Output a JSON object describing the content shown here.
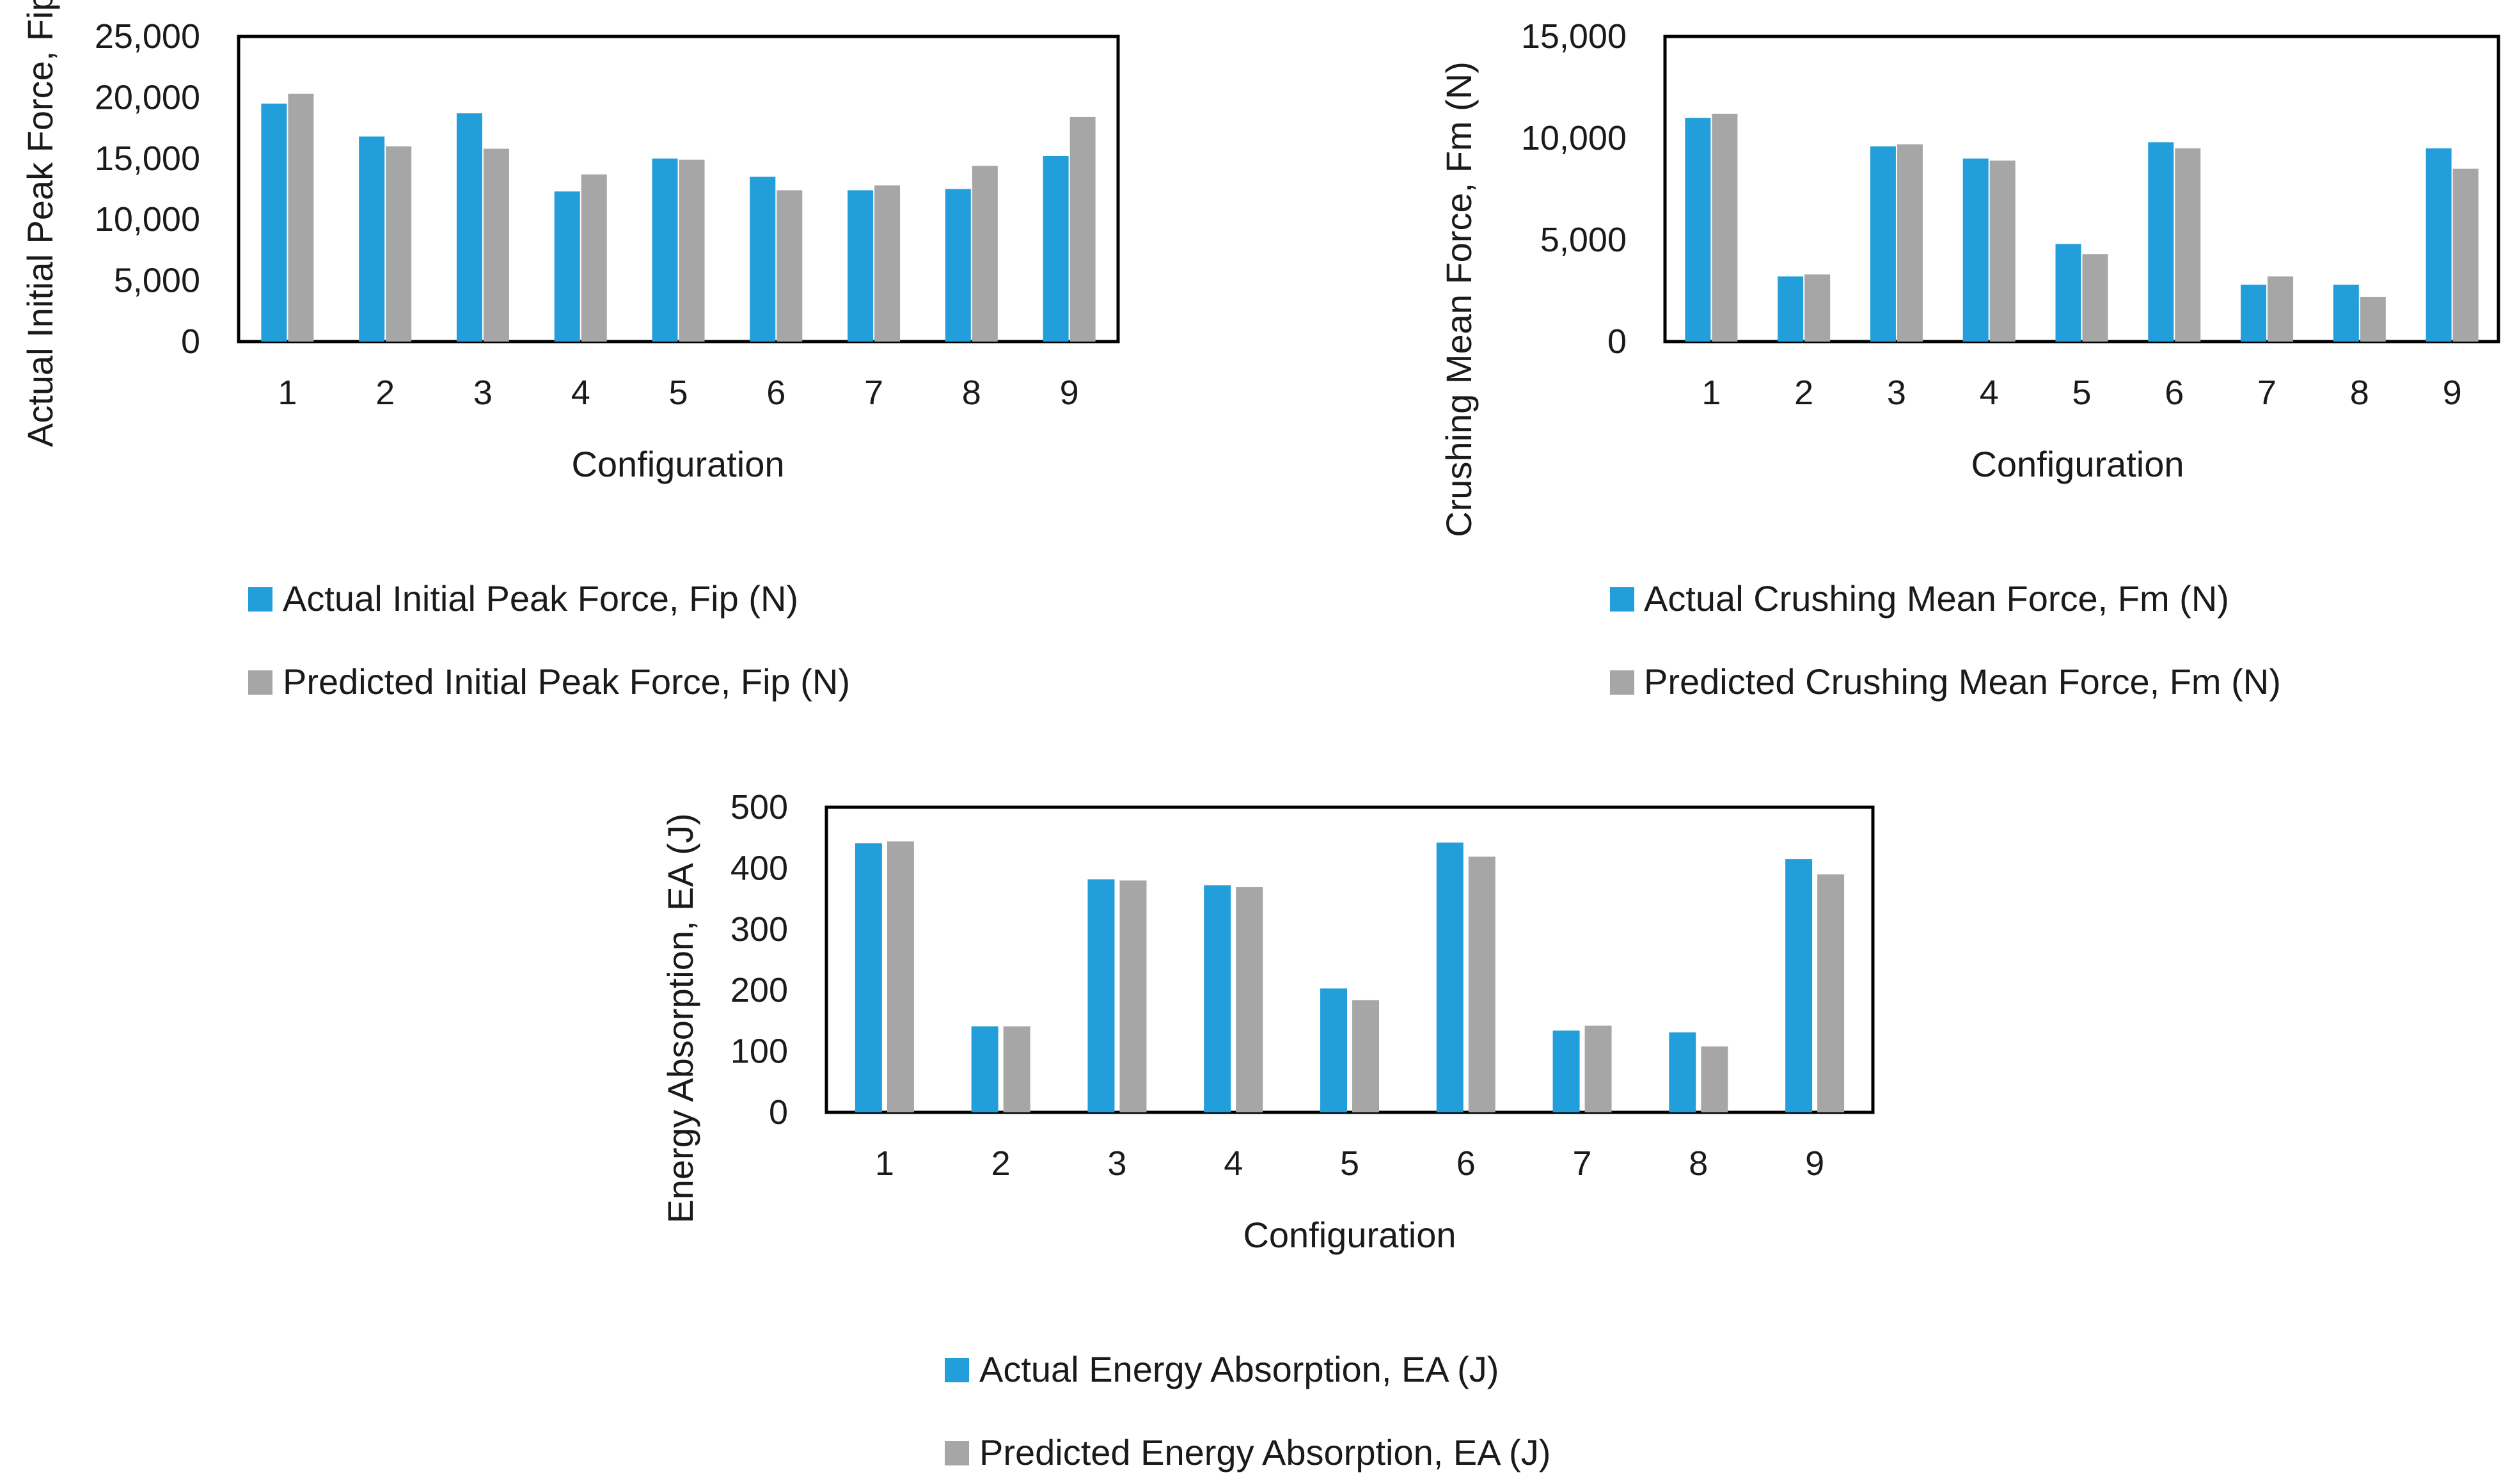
{
  "colors": {
    "actual": "#229FDA",
    "predicted": "#A6A6A6",
    "frame": "#000000"
  },
  "chart_data": [
    {
      "type": "bar",
      "categories": [
        "1",
        "2",
        "3",
        "4",
        "5",
        "6",
        "7",
        "8",
        "9"
      ],
      "series": [
        {
          "name": "Actual Initial Peak Force, Fip (N)",
          "values": [
            19500,
            16800,
            18700,
            12300,
            15000,
            13500,
            12400,
            12500,
            15200
          ]
        },
        {
          "name": "Predicted Initial Peak Force, Fip (N)",
          "values": [
            20300,
            16000,
            15800,
            13700,
            14900,
            12400,
            12800,
            14400,
            18400
          ]
        }
      ],
      "ylim": [
        0,
        25000
      ],
      "yticks": [
        0,
        5000,
        10000,
        15000,
        20000,
        25000
      ],
      "ytick_labels": [
        "0",
        "5,000",
        "10,000",
        "15,000",
        "20,000",
        "25,000"
      ],
      "xlabel": "Configuration",
      "ylabel": "Actual Initial Peak Force, Fip (N)",
      "grid": false,
      "legend_position": "bottom"
    },
    {
      "type": "bar",
      "categories": [
        "1",
        "2",
        "3",
        "4",
        "5",
        "6",
        "7",
        "8",
        "9"
      ],
      "series": [
        {
          "name": "Actual Crushing Mean Force, Fm (N)",
          "values": [
            11000,
            3200,
            9600,
            9000,
            4800,
            9800,
            2800,
            2800,
            9500
          ]
        },
        {
          "name": "Predicted Crushing Mean Force, Fm (N)",
          "values": [
            11200,
            3300,
            9700,
            8900,
            4300,
            9500,
            3200,
            2200,
            8500
          ]
        }
      ],
      "ylim": [
        0,
        15000
      ],
      "yticks": [
        0,
        5000,
        10000,
        15000
      ],
      "ytick_labels": [
        "0",
        "5,000",
        "10,000",
        "15,000"
      ],
      "xlabel": "Configuration",
      "ylabel": "Crushing Mean Force, Fm (N)",
      "grid": false,
      "legend_position": "bottom"
    },
    {
      "type": "bar",
      "categories": [
        "1",
        "2",
        "3",
        "4",
        "5",
        "6",
        "7",
        "8",
        "9"
      ],
      "series": [
        {
          "name": "Actual Energy Absorption, EA (J)",
          "values": [
            441,
            141,
            382,
            372,
            203,
            442,
            134,
            131,
            415
          ]
        },
        {
          "name": "Predicted Energy Absorption, EA (J)",
          "values": [
            444,
            141,
            380,
            369,
            184,
            419,
            142,
            108,
            390
          ]
        }
      ],
      "ylim": [
        0,
        500
      ],
      "yticks": [
        0,
        100,
        200,
        300,
        400,
        500
      ],
      "ytick_labels": [
        "0",
        "100",
        "200",
        "300",
        "400",
        "500"
      ],
      "xlabel": "Configuration",
      "ylabel": "Energy Absorption, EA (J)",
      "grid": false,
      "legend_position": "bottom"
    }
  ]
}
